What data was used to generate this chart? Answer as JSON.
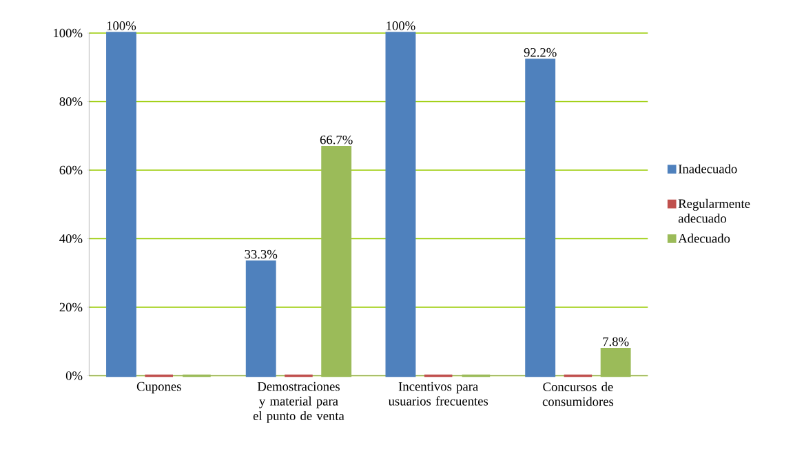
{
  "chart_data": {
    "type": "bar",
    "categories": [
      "Cupones",
      "Demostraciones y material para el punto de venta",
      "Incentivos para usuarios frecuentes",
      "Concursos de consumidores"
    ],
    "series": [
      {
        "name": "Inadecuado",
        "color": "#4f81bd",
        "values": [
          100,
          33.3,
          100,
          92.2
        ],
        "value_labels": [
          "100%",
          "33.3%",
          "100%",
          "92.2%"
        ]
      },
      {
        "name": "Regularmente adecuado",
        "color": "#c0504d",
        "values": [
          0,
          0,
          0,
          0
        ],
        "value_labels": [
          null,
          null,
          null,
          null
        ]
      },
      {
        "name": "Adecuado",
        "color": "#9bbb59",
        "values": [
          0,
          66.7,
          0,
          7.8
        ],
        "value_labels": [
          null,
          "66.7%",
          null,
          "7.8%"
        ]
      }
    ],
    "ylim": [
      0,
      100
    ],
    "yticks": [
      {
        "value": 0,
        "label": "0%"
      },
      {
        "value": 20,
        "label": "20%"
      },
      {
        "value": 40,
        "label": "40%"
      },
      {
        "value": 60,
        "label": "60%"
      },
      {
        "value": 80,
        "label": "80%"
      },
      {
        "value": 100,
        "label": "100%"
      }
    ],
    "grid": "y",
    "legend": "right"
  }
}
